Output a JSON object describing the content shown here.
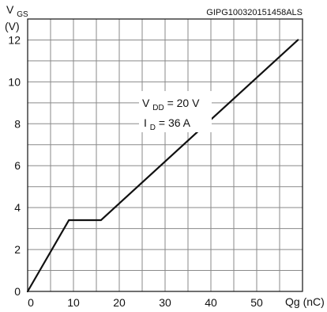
{
  "chart_code": "GIPG100320151458ALS",
  "chart_data": {
    "type": "line",
    "title": "",
    "xlabel": "Qg (nC)",
    "ylabel": "VGS (V)",
    "xlim": [
      0,
      60
    ],
    "ylim": [
      0,
      13
    ],
    "x_ticks": [
      0,
      10,
      20,
      30,
      40,
      50
    ],
    "y_ticks": [
      0,
      2,
      4,
      6,
      8,
      10,
      12
    ],
    "grid": true,
    "series": [
      {
        "x": [
          0,
          9,
          16,
          59
        ],
        "y": [
          0,
          3.4,
          3.4,
          12
        ]
      }
    ],
    "annotations": [
      {
        "label": "V",
        "sub": "DD",
        "value": " = 20 V"
      },
      {
        "label": "I",
        "sub": "D",
        "value": " = 36 A"
      }
    ],
    "axis_text": {
      "y_main": "V",
      "y_sub": "GS",
      "y_unit": "(V)",
      "x_main": "Qg (nC)"
    }
  }
}
